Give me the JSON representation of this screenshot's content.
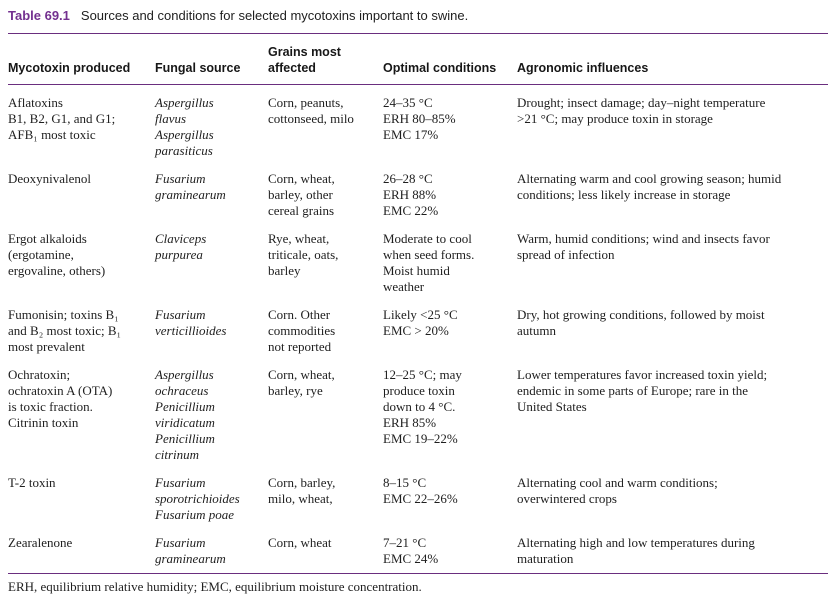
{
  "colors": {
    "accent": "#73308f",
    "rule": "#6a2e7f",
    "text": "#1e1e1e"
  },
  "table": {
    "label": "Table 69.1",
    "caption": "Sources and conditions for selected mycotoxins important to swine.",
    "columns": [
      "Mycotoxin produced",
      "Fungal source",
      "Grains most\naffected",
      "Optimal conditions",
      "Agronomic influences"
    ],
    "rows": [
      {
        "mycotoxin": "Aflatoxins\nB1, B2, G1, and G1;\nAFB₁ most toxic",
        "fungal_source": "Aspergillus\nflavus\nAspergillus\nparasiticus",
        "grains": "Corn, peanuts,\ncottonseed, milo",
        "optimal": "24–35 °C\nERH 80–85%\nEMC 17%",
        "agronomic": "Drought; insect damage; day–night temperature\n>21 °C; may produce toxin in storage"
      },
      {
        "mycotoxin": "Deoxynivalenol",
        "fungal_source": "Fusarium\ngraminearum",
        "grains": "Corn, wheat,\nbarley, other\ncereal grains",
        "optimal": "26–28 °C\nERH 88%\nEMC 22%",
        "agronomic": "Alternating warm and cool growing season; humid\nconditions; less likely increase in storage"
      },
      {
        "mycotoxin": "Ergot alkaloids\n(ergotamine,\nergovaline, others)",
        "fungal_source": "Claviceps\npurpurea",
        "grains": "Rye, wheat,\ntriticale, oats,\nbarley",
        "optimal": "Moderate to cool\nwhen seed forms.\nMoist humid\nweather",
        "agronomic": "Warm, humid conditions; wind and insects favor\nspread of infection"
      },
      {
        "mycotoxin": "Fumonisin; toxins B₁\nand B₂ most toxic; B₁\nmost prevalent",
        "fungal_source": "Fusarium\nverticillioides",
        "grains": "Corn. Other\ncommodities\nnot reported",
        "optimal": "Likely <25 °C\nEMC > 20%",
        "agronomic": "Dry, hot growing conditions, followed by moist\nautumn"
      },
      {
        "mycotoxin": "Ochratoxin;\nochratoxin A (OTA)\nis toxic fraction.\nCitrinin toxin",
        "fungal_source": "Aspergillus\nochraceus\nPenicillium\nviridicatum\nPenicillium\ncitrinum",
        "grains": "Corn, wheat,\nbarley, rye",
        "optimal": "12–25 °C; may\nproduce toxin\ndown to 4 °C.\nERH 85%\nEMC 19–22%",
        "agronomic": "Lower temperatures favor increased toxin yield;\nendemic in some parts of Europe; rare in the\nUnited States"
      },
      {
        "mycotoxin": "T-2 toxin",
        "fungal_source": "Fusarium\nsporotrichioides\nFusarium poae",
        "grains": "Corn, barley,\nmilo, wheat,",
        "optimal": "8–15 °C\nEMC 22–26%",
        "agronomic": "Alternating cool and warm conditions;\noverwintered crops"
      },
      {
        "mycotoxin": "Zearalenone",
        "fungal_source": "Fusarium\ngraminearum",
        "grains": "Corn, wheat",
        "optimal": "7–21 °C\nEMC 24%",
        "agronomic": "Alternating high and low temperatures during\nmaturation"
      }
    ],
    "footnote": "ERH, equilibrium relative humidity; EMC, equilibrium moisture concentration."
  }
}
